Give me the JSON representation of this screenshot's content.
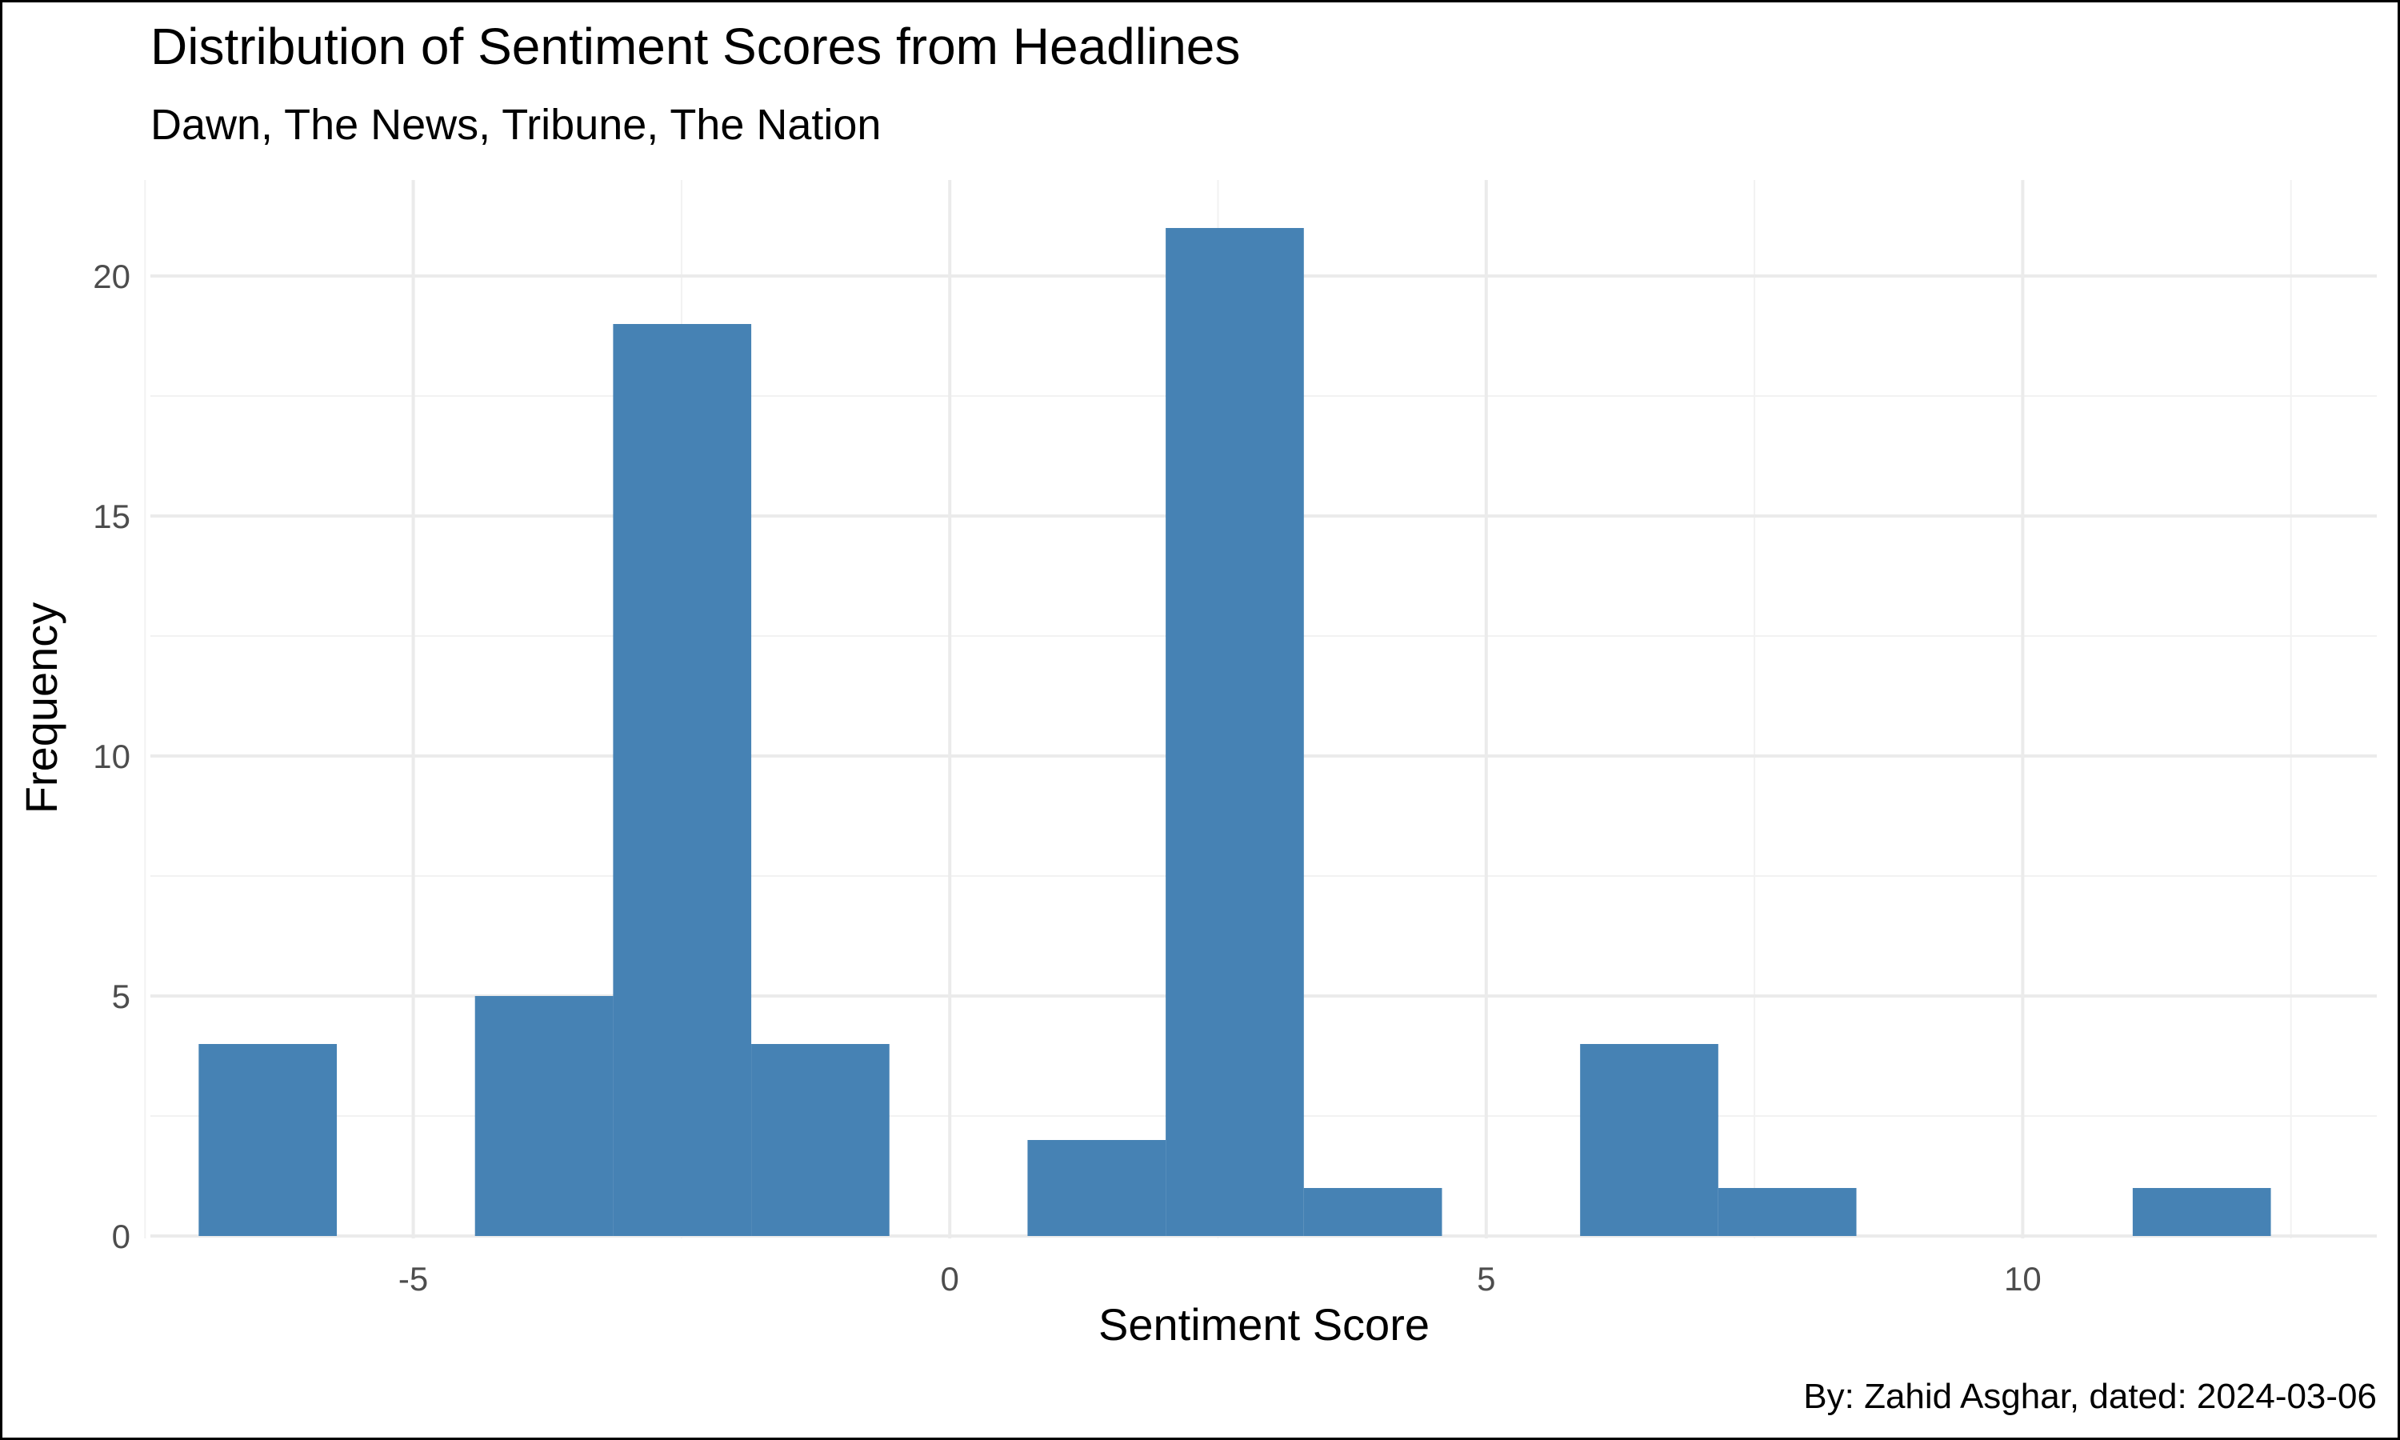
{
  "chart_data": {
    "type": "bar",
    "title": "Distribution of Sentiment Scores from Headlines",
    "subtitle": "Dawn, The News, Tribune, The Nation",
    "xlabel": "Sentiment Score",
    "ylabel": "Frequency",
    "caption": "By: Zahid Asghar, dated: 2024-03-06",
    "bin_width": 1.2875,
    "bins": [
      {
        "x_start": -7.0,
        "x_end": -5.7125,
        "count": 4
      },
      {
        "x_start": -5.7125,
        "x_end": -4.425,
        "count": 0
      },
      {
        "x_start": -4.425,
        "x_end": -3.1375,
        "count": 5
      },
      {
        "x_start": -3.1375,
        "x_end": -1.85,
        "count": 19
      },
      {
        "x_start": -1.85,
        "x_end": -0.5625,
        "count": 4
      },
      {
        "x_start": -0.5625,
        "x_end": 0.725,
        "count": 0
      },
      {
        "x_start": 0.725,
        "x_end": 2.0125,
        "count": 2
      },
      {
        "x_start": 2.0125,
        "x_end": 3.3,
        "count": 21
      },
      {
        "x_start": 3.3,
        "x_end": 4.5875,
        "count": 1
      },
      {
        "x_start": 4.5875,
        "x_end": 5.875,
        "count": 0
      },
      {
        "x_start": 5.875,
        "x_end": 7.1625,
        "count": 4
      },
      {
        "x_start": 7.1625,
        "x_end": 8.45,
        "count": 1
      },
      {
        "x_start": 8.45,
        "x_end": 9.7375,
        "count": 0
      },
      {
        "x_start": 9.7375,
        "x_end": 11.025,
        "count": 0
      },
      {
        "x_start": 11.025,
        "x_end": 12.3125,
        "count": 1
      }
    ],
    "xlim": [
      -7.45,
      13.3
    ],
    "ylim": [
      -0.05,
      22
    ],
    "x_ticks": [
      -5,
      0,
      5,
      10
    ],
    "x_tick_labels": [
      "-5",
      "0",
      "5",
      "10"
    ],
    "x_minor_ticks": [
      -7.5,
      -2.5,
      2.5,
      7.5,
      12.5
    ],
    "y_ticks": [
      0,
      5,
      10,
      15,
      20
    ],
    "y_tick_labels": [
      "0",
      "5",
      "10",
      "15",
      "20"
    ],
    "y_minor_ticks": [
      2.5,
      7.5,
      12.5,
      17.5
    ],
    "grid": true,
    "legend": "none",
    "colors": {
      "bar": "#4682B4",
      "grid_major": "#EBEBEB",
      "grid_minor": "#F2F2F2",
      "tick_text": "#4D4D4D",
      "text": "#000000"
    }
  }
}
